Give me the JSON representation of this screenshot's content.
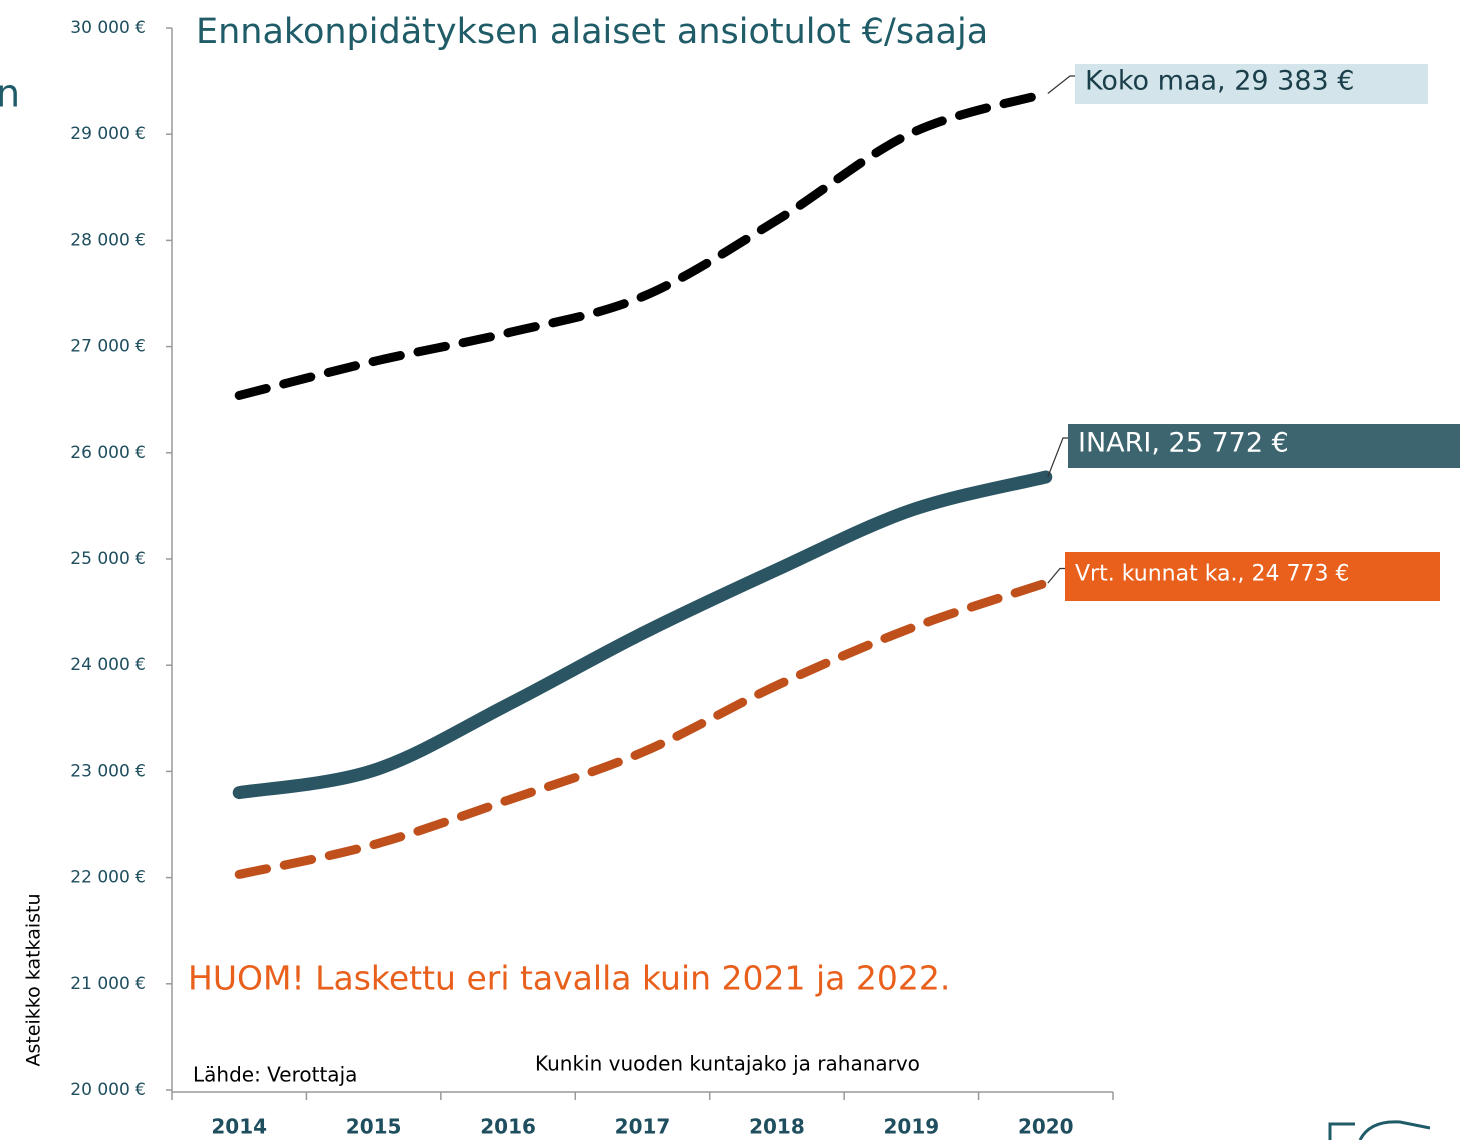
{
  "chart_data": {
    "type": "line",
    "title": "Ennakonpidätyksen alaiset ansiotulot €/saaja",
    "categories": [
      "2014",
      "2015",
      "2016",
      "2017",
      "2018",
      "2019",
      "2020"
    ],
    "series": [
      {
        "color": "#000000",
        "dashed": true,
        "label_color": "#d3e4ea",
        "label_text_color": "#1a3f4a",
        "values": [
          26540,
          26860,
          27130,
          27470,
          28190,
          29010,
          29383
        ],
        "value_labels": [
          null,
          null,
          null,
          null,
          null,
          null,
          "Koko maa, 29 383 €"
        ]
      },
      {
        "color": "#2b5563",
        "dashed": false,
        "label_color": "#3d6570",
        "label_text_color": "#ffffff",
        "values": [
          22800,
          23010,
          23630,
          24300,
          24900,
          25460,
          25772
        ],
        "value_labels": [
          null,
          null,
          null,
          null,
          null,
          null,
          "INARI, 25 772 €"
        ]
      },
      {
        "color": "#c0501b",
        "dashed": true,
        "label_color": "#e8601c",
        "label_text_color": "#ffffff",
        "values": [
          22030,
          22310,
          22730,
          23180,
          23810,
          24350,
          24773
        ],
        "value_labels": [
          null,
          null,
          null,
          null,
          null,
          null,
          "Vrt. kunnat ka., 24 773 €"
        ]
      }
    ],
    "ylim": [
      20000,
      30000
    ],
    "yticks": [
      {
        "value": 20000,
        "label": "20 000 €"
      },
      {
        "value": 21000,
        "label": "21 000 €"
      },
      {
        "value": 22000,
        "label": "22 000 €"
      },
      {
        "value": 23000,
        "label": "23 000 €"
      },
      {
        "value": 24000,
        "label": "24 000 €"
      },
      {
        "value": 25000,
        "label": "25 000 €"
      },
      {
        "value": 26000,
        "label": "26 000 €"
      },
      {
        "value": 27000,
        "label": "27 000 €"
      },
      {
        "value": 28000,
        "label": "28 000 €"
      },
      {
        "value": 29000,
        "label": "29 000 €"
      },
      {
        "value": 30000,
        "label": "30 000 €"
      }
    ],
    "grid": false,
    "y_note": "Asteikko katkaistu",
    "note": "HUOM! Laskettu eri tavalla kuin 2021 ja 2022.",
    "source": "Lähde: Verottaja",
    "subnote": "Kunkin vuoden kuntajako ja rahanarvo",
    "fragment": "n"
  }
}
